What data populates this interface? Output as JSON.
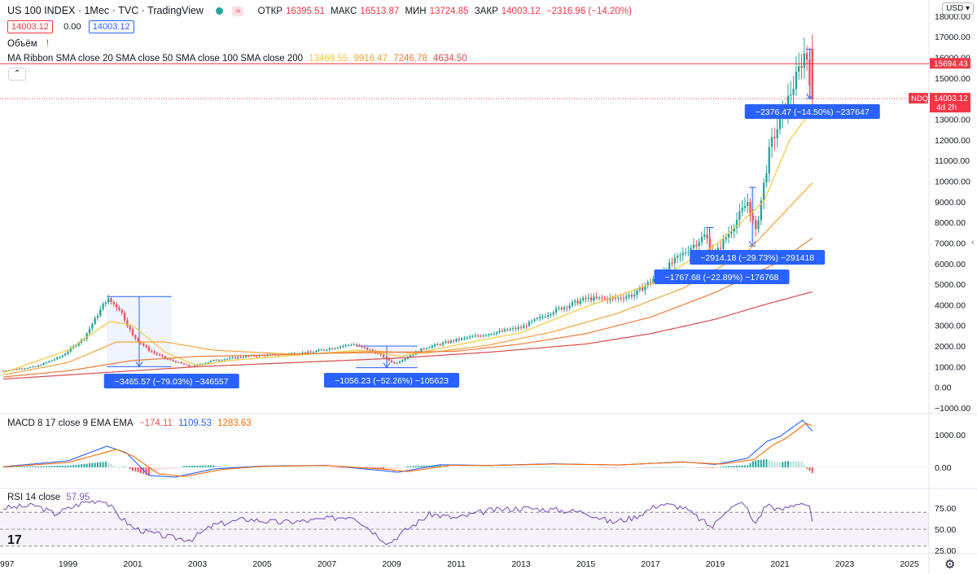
{
  "header": {
    "symbol": "US 100 INDEX · 1Мес · TVC · TradingView",
    "ohlc": {
      "open_label": "ОТКР",
      "open": "16395.51",
      "high_label": "МАКС",
      "high": "16513.87",
      "low_label": "МИН",
      "low": "13724.85",
      "close_label": "ЗАКР",
      "close": "14003.12",
      "change": "−2316.96 (−14.20%)"
    },
    "sell_price": "14003.12",
    "spread": "0.00",
    "buy_price": "14003.12",
    "currency": "USD"
  },
  "indicators": {
    "volume_label": "Объём",
    "ribbon_label": "MA Ribbon SMA close 20 SMA close 50 SMA close 100 SMA close 200",
    "ribbon_values": [
      "13468.55",
      "9916.47",
      "7246.78",
      "4634.50"
    ],
    "macd_label": "MACD 8 17 close 9 EMA EMA",
    "macd_values": [
      "−174.11",
      "1109.53",
      "1283.63"
    ],
    "rsi_label": "RSI 14 close",
    "rsi_value": "57.95"
  },
  "colors": {
    "up": "#26a69a",
    "down": "#ef5350",
    "sma20": "#f7c737",
    "sma50": "#f6a33a",
    "sma100": "#ef7a3a",
    "sma200": "#d84a4a",
    "macd_line": "#2962ff",
    "signal_line": "#ff6d00",
    "rsi": "#7e57c2",
    "measure": "#2962ff",
    "pricebox": "#f23645"
  },
  "chart_data": {
    "type": "candlestick",
    "x_axis": {
      "labels": [
        "997",
        "1999",
        "2001",
        "2003",
        "2005",
        "2007",
        "2009",
        "2011",
        "2013",
        "2015",
        "2017",
        "2019",
        "2021",
        "2023",
        "2025"
      ],
      "range": [
        1997.0,
        2025.5
      ]
    },
    "y_axis": {
      "labels": [
        "−1000.00",
        "0.00",
        "1000.00",
        "2000.00",
        "3000.00",
        "4000.00",
        "5000.00",
        "6000.00",
        "7000.00",
        "8000.00",
        "9000.00",
        "10000.00",
        "11000.00",
        "12000.00",
        "13000.00",
        "14000.00",
        "15000.00",
        "16000.00",
        "17000.00",
        "18000.00"
      ],
      "range": [
        -1000,
        18000
      ]
    },
    "price_anchors": [
      [
        1997.0,
        800
      ],
      [
        1998.0,
        1000
      ],
      [
        1998.8,
        1500
      ],
      [
        1999.5,
        2400
      ],
      [
        2000.2,
        4300
      ],
      [
        2000.6,
        3800
      ],
      [
        2001.0,
        2500
      ],
      [
        2001.5,
        1800
      ],
      [
        2002.0,
        1400
      ],
      [
        2002.8,
        1000
      ],
      [
        2003.5,
        1300
      ],
      [
        2004.5,
        1500
      ],
      [
        2005.5,
        1600
      ],
      [
        2006.5,
        1700
      ],
      [
        2007.8,
        2100
      ],
      [
        2008.5,
        1700
      ],
      [
        2009.1,
        1150
      ],
      [
        2010.0,
        1900
      ],
      [
        2011.0,
        2300
      ],
      [
        2012.0,
        2600
      ],
      [
        2013.0,
        2900
      ],
      [
        2014.0,
        3700
      ],
      [
        2015.0,
        4300
      ],
      [
        2015.9,
        4300
      ],
      [
        2016.5,
        4500
      ],
      [
        2017.5,
        5800
      ],
      [
        2018.7,
        7400
      ],
      [
        2018.95,
        6300
      ],
      [
        2019.5,
        7700
      ],
      [
        2020.0,
        9000
      ],
      [
        2020.25,
        7500
      ],
      [
        2020.7,
        11700
      ],
      [
        2021.0,
        12900
      ],
      [
        2021.5,
        15000
      ],
      [
        2021.8,
        16400
      ],
      [
        2022.0,
        14003
      ]
    ],
    "moving_averages": [
      {
        "name": "SMA close 20",
        "color_key": "sma20",
        "points": [
          [
            1997,
            700
          ],
          [
            1999,
            1800
          ],
          [
            2000.3,
            3200
          ],
          [
            2001,
            3000
          ],
          [
            2002,
            1700
          ],
          [
            2003,
            1050
          ],
          [
            2004,
            1300
          ],
          [
            2006,
            1550
          ],
          [
            2008,
            1800
          ],
          [
            2009.3,
            1500
          ],
          [
            2011,
            2050
          ],
          [
            2013,
            2650
          ],
          [
            2015,
            3900
          ],
          [
            2017,
            5000
          ],
          [
            2019,
            6900
          ],
          [
            2020.5,
            9000
          ],
          [
            2021.3,
            12000
          ],
          [
            2022,
            13468
          ]
        ]
      },
      {
        "name": "SMA close 50",
        "color_key": "sma50",
        "points": [
          [
            1997,
            600
          ],
          [
            1999,
            1200
          ],
          [
            2000.5,
            2200
          ],
          [
            2002,
            2200
          ],
          [
            2003.5,
            1800
          ],
          [
            2006,
            1600
          ],
          [
            2008.5,
            1750
          ],
          [
            2010,
            1650
          ],
          [
            2012,
            2050
          ],
          [
            2014,
            2700
          ],
          [
            2016,
            3600
          ],
          [
            2018,
            4800
          ],
          [
            2020,
            6600
          ],
          [
            2022,
            9916
          ]
        ]
      },
      {
        "name": "SMA close 100",
        "color_key": "sma100",
        "points": [
          [
            1997,
            500
          ],
          [
            1999,
            800
          ],
          [
            2001,
            1300
          ],
          [
            2003,
            1500
          ],
          [
            2005,
            1550
          ],
          [
            2007,
            1650
          ],
          [
            2009,
            1700
          ],
          [
            2011,
            1750
          ],
          [
            2013,
            2100
          ],
          [
            2015,
            2600
          ],
          [
            2017,
            3400
          ],
          [
            2019,
            4600
          ],
          [
            2021,
            6100
          ],
          [
            2022,
            7246
          ]
        ]
      },
      {
        "name": "SMA close 200",
        "color_key": "sma200",
        "points": [
          [
            1997,
            400
          ],
          [
            2000,
            700
          ],
          [
            2003,
            1000
          ],
          [
            2006,
            1200
          ],
          [
            2009,
            1400
          ],
          [
            2012,
            1700
          ],
          [
            2015,
            2100
          ],
          [
            2017,
            2600
          ],
          [
            2019,
            3300
          ],
          [
            2020.5,
            4000
          ],
          [
            2022,
            4634
          ]
        ]
      }
    ],
    "horizontal_lines": [
      {
        "value": 15694.43,
        "label": "15694.43",
        "style": "solid"
      },
      {
        "value": 14003.12,
        "label": "14003.12",
        "symbol": "NDQ",
        "countdown": "4d 2h",
        "style": "dotted"
      }
    ],
    "measurements": [
      {
        "x_range": [
          2000.2,
          2002.2
        ],
        "y_range": [
          4400,
          1000
        ],
        "label": "−3465.57 (−79.03%) −346557"
      },
      {
        "x_range": [
          2007.9,
          2009.8
        ],
        "y_range": [
          2000,
          950
        ],
        "label": "−1056.23 (−52.26%) −105623"
      },
      {
        "x_range": [
          2018.7,
          2018.95
        ],
        "y_range": [
          7750,
          6000
        ],
        "label": "−1767.68 (−22.89%) −176768"
      },
      {
        "x_range": [
          2020.05,
          2020.25
        ],
        "y_range": [
          9700,
          6850
        ],
        "label": "−2914.18 (−29.73%) −291418"
      },
      {
        "x_range": [
          2021.8,
          2022.05
        ],
        "y_range": [
          16400,
          14000
        ],
        "label": "−2376.47 (−14.50%) −237647"
      }
    ],
    "macd": {
      "y_axis": {
        "labels": [
          "1000.00",
          "0.00"
        ],
        "range": [
          -400,
          1600
        ]
      },
      "macd_points": [
        [
          1997,
          20
        ],
        [
          1999,
          200
        ],
        [
          2000.2,
          650
        ],
        [
          2000.8,
          450
        ],
        [
          2001.5,
          -250
        ],
        [
          2002.3,
          -300
        ],
        [
          2003.5,
          -50
        ],
        [
          2005,
          40
        ],
        [
          2007,
          60
        ],
        [
          2008.5,
          -80
        ],
        [
          2009.2,
          -150
        ],
        [
          2010.5,
          80
        ],
        [
          2012,
          60
        ],
        [
          2014,
          110
        ],
        [
          2016,
          70
        ],
        [
          2018,
          170
        ],
        [
          2019,
          90
        ],
        [
          2020,
          280
        ],
        [
          2020.6,
          800
        ],
        [
          2021,
          950
        ],
        [
          2021.7,
          1450
        ],
        [
          2022,
          1110
        ]
      ],
      "signal_points": [
        [
          1997,
          10
        ],
        [
          1999,
          150
        ],
        [
          2000.5,
          550
        ],
        [
          2001,
          350
        ],
        [
          2001.8,
          -200
        ],
        [
          2002.6,
          -280
        ],
        [
          2003.8,
          -60
        ],
        [
          2005,
          30
        ],
        [
          2007,
          55
        ],
        [
          2008.7,
          -50
        ],
        [
          2009.5,
          -130
        ],
        [
          2010.8,
          60
        ],
        [
          2012,
          55
        ],
        [
          2014,
          100
        ],
        [
          2016,
          75
        ],
        [
          2018,
          160
        ],
        [
          2019.2,
          100
        ],
        [
          2020.2,
          240
        ],
        [
          2020.8,
          700
        ],
        [
          2021.2,
          900
        ],
        [
          2021.8,
          1350
        ],
        [
          2022,
          1284
        ]
      ]
    },
    "rsi": {
      "y_axis": {
        "labels": [
          "75.00",
          "50.00",
          "25.00"
        ],
        "range": [
          20,
          100
        ],
        "band": [
          30,
          70
        ]
      },
      "points": [
        [
          1997,
          75
        ],
        [
          1998,
          78
        ],
        [
          1998.6,
          68
        ],
        [
          1999.5,
          82
        ],
        [
          2000.1,
          85
        ],
        [
          2000.6,
          65
        ],
        [
          2001,
          52
        ],
        [
          2001.5,
          46
        ],
        [
          2002.2,
          40
        ],
        [
          2002.8,
          38
        ],
        [
          2003.5,
          55
        ],
        [
          2004.5,
          62
        ],
        [
          2005.5,
          58
        ],
        [
          2006.5,
          60
        ],
        [
          2007.8,
          66
        ],
        [
          2008.5,
          45
        ],
        [
          2008.9,
          33
        ],
        [
          2009.4,
          48
        ],
        [
          2010.2,
          68
        ],
        [
          2011,
          63
        ],
        [
          2012,
          72
        ],
        [
          2013,
          75
        ],
        [
          2014,
          73
        ],
        [
          2015,
          70
        ],
        [
          2015.8,
          58
        ],
        [
          2016.5,
          64
        ],
        [
          2017.3,
          80
        ],
        [
          2018.0,
          76
        ],
        [
          2018.9,
          52
        ],
        [
          2019.3,
          72
        ],
        [
          2019.9,
          82
        ],
        [
          2020.2,
          55
        ],
        [
          2020.6,
          80
        ],
        [
          2021.0,
          72
        ],
        [
          2021.6,
          82
        ],
        [
          2021.9,
          78
        ],
        [
          2022.0,
          58
        ]
      ]
    }
  }
}
